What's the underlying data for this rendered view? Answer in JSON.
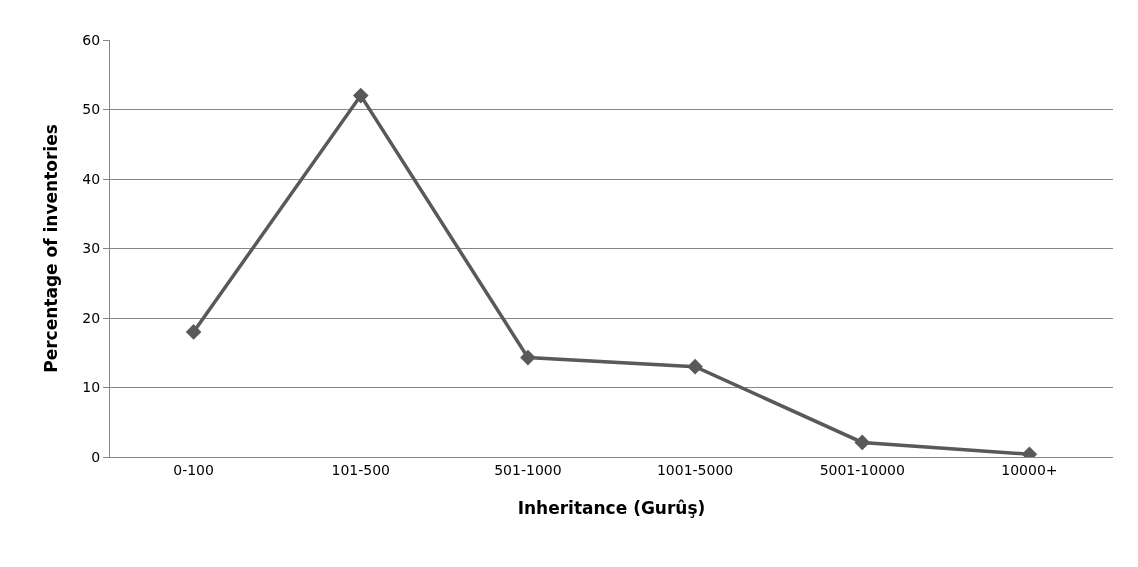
{
  "chart_data": {
    "type": "line",
    "xlabel": "Inheritance (Gurûş)",
    "ylabel": "Percentage of inventories",
    "categories": [
      "0-100",
      "101-500",
      "501-1000",
      "1001-5000",
      "5001-10000",
      "10000+"
    ],
    "series": [
      {
        "color": "#595959",
        "values": [
          18.0,
          52.0,
          14.3,
          13.0,
          2.1,
          0.4
        ]
      }
    ],
    "ylim": [
      0,
      60
    ],
    "yticks": [
      0,
      10,
      20,
      30,
      40,
      50,
      60
    ],
    "grid": "y",
    "marker": "diamond",
    "line_style": "solid"
  }
}
